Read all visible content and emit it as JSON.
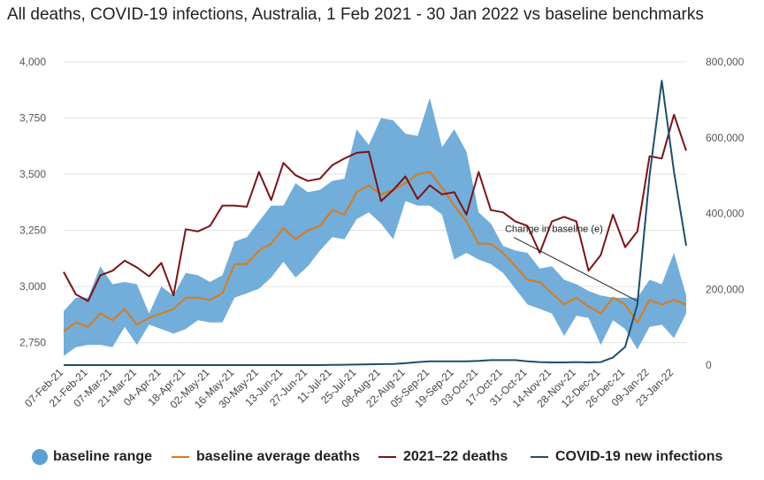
{
  "chart_data": {
    "type": "line",
    "title": "All deaths, COVID-19 infections, Australia, 1 Feb 2021 - 30 Jan 2022 vs baseline benchmarks",
    "xlabel": "",
    "ylabel_left": "",
    "ylabel_right": "",
    "ylim_left": [
      2650,
      4000
    ],
    "ylim_right": [
      0,
      800000
    ],
    "yticks_left": [
      2750,
      3000,
      3250,
      3500,
      3750,
      4000
    ],
    "yticks_left_labels": [
      "2,750",
      "3,000",
      "3,250",
      "3,500",
      "3,750",
      "4,000"
    ],
    "yticks_right": [
      0,
      200000,
      400000,
      600000,
      800000
    ],
    "yticks_right_labels": [
      "0",
      "200,000",
      "400,000",
      "600,000",
      "800,000"
    ],
    "grid": true,
    "legend_position": "bottom",
    "x": [
      "07-Feb-21",
      "14-Feb-21",
      "21-Feb-21",
      "28-Feb-21",
      "07-Mar-21",
      "14-Mar-21",
      "21-Mar-21",
      "28-Mar-21",
      "04-Apr-21",
      "11-Apr-21",
      "18-Apr-21",
      "25-Apr-21",
      "02-May-21",
      "09-May-21",
      "16-May-21",
      "23-May-21",
      "30-May-21",
      "06-Jun-21",
      "13-Jun-21",
      "20-Jun-21",
      "27-Jun-21",
      "04-Jul-21",
      "11-Jul-21",
      "18-Jul-21",
      "25-Jul-21",
      "01-Aug-21",
      "08-Aug-21",
      "15-Aug-21",
      "22-Aug-21",
      "29-Aug-21",
      "05-Sep-21",
      "12-Sep-21",
      "19-Sep-21",
      "26-Sep-21",
      "03-Oct-21",
      "10-Oct-21",
      "17-Oct-21",
      "24-Oct-21",
      "31-Oct-21",
      "07-Nov-21",
      "14-Nov-21",
      "21-Nov-21",
      "28-Nov-21",
      "05-Dec-21",
      "12-Dec-21",
      "19-Dec-21",
      "26-Dec-21",
      "02-Jan-22",
      "09-Jan-22",
      "16-Jan-22",
      "23-Jan-22",
      "30-Jan-22"
    ],
    "x_tick_labels": [
      "07-Feb-21",
      "21-Feb-21",
      "07-Mar-21",
      "21-Mar-21",
      "04-Apr-21",
      "18-Apr-21",
      "02-May-21",
      "16-May-21",
      "30-May-21",
      "13-Jun-21",
      "27-Jun-21",
      "11-Jul-21",
      "25-Jul-21",
      "08-Aug-21",
      "22-Aug-21",
      "05-Sep-21",
      "19-Sep-21",
      "03-Oct-21",
      "17-Oct-21",
      "31-Oct-21",
      "14-Nov-21",
      "28-Nov-21",
      "12-Dec-21",
      "26-Dec-21",
      "09-Jan-22",
      "23-Jan-22"
    ],
    "series": [
      {
        "name": "baseline range",
        "kind": "range",
        "axis": "left",
        "color": "#5b9fd4",
        "upper": [
          2890,
          2950,
          2950,
          3090,
          3010,
          3020,
          3010,
          2880,
          3000,
          2960,
          3060,
          3050,
          3020,
          3050,
          3200,
          3220,
          3290,
          3360,
          3360,
          3460,
          3420,
          3430,
          3470,
          3480,
          3700,
          3630,
          3750,
          3740,
          3680,
          3670,
          3840,
          3620,
          3700,
          3600,
          3330,
          3280,
          3180,
          3160,
          3150,
          3080,
          3090,
          3030,
          3010,
          2980,
          2960,
          2950,
          2950,
          2950,
          3030,
          3010,
          3150,
          2960
        ],
        "lower": [
          2690,
          2730,
          2740,
          2740,
          2730,
          2820,
          2740,
          2830,
          2810,
          2790,
          2810,
          2850,
          2840,
          2840,
          2950,
          2970,
          2990,
          3040,
          3110,
          3040,
          3090,
          3160,
          3220,
          3210,
          3300,
          3330,
          3280,
          3210,
          3380,
          3360,
          3360,
          3320,
          3120,
          3150,
          3120,
          3100,
          3060,
          2990,
          2920,
          2900,
          2880,
          2780,
          2870,
          2860,
          2740,
          2850,
          2810,
          2720,
          2820,
          2830,
          2770,
          2880
        ]
      },
      {
        "name": "baseline average deaths",
        "kind": "line",
        "axis": "left",
        "color": "#d97b1a",
        "values": [
          2800,
          2840,
          2820,
          2880,
          2850,
          2900,
          2830,
          2860,
          2880,
          2900,
          2950,
          2950,
          2940,
          2970,
          3100,
          3100,
          3160,
          3190,
          3260,
          3210,
          3250,
          3270,
          3340,
          3320,
          3420,
          3450,
          3410,
          3430,
          3460,
          3500,
          3510,
          3440,
          3360,
          3290,
          3190,
          3190,
          3150,
          3090,
          3030,
          3020,
          2970,
          2920,
          2950,
          2910,
          2880,
          2950,
          2920,
          2840,
          2940,
          2920,
          2940,
          2920
        ]
      },
      {
        "name": "2021–22 deaths",
        "kind": "line",
        "axis": "left",
        "color": "#7a1416",
        "values": [
          3065,
          2965,
          2935,
          3050,
          3070,
          3115,
          3085,
          3045,
          3105,
          2960,
          3255,
          3245,
          3270,
          3360,
          3360,
          3355,
          3510,
          3385,
          3550,
          3495,
          3470,
          3480,
          3540,
          3570,
          3595,
          3600,
          3380,
          3430,
          3490,
          3390,
          3450,
          3410,
          3420,
          3320,
          3510,
          3340,
          3330,
          3290,
          3270,
          3150,
          3290,
          3310,
          3290,
          3070,
          3140,
          3320,
          3175,
          3245,
          3580,
          3570,
          3765,
          3605
        ]
      },
      {
        "name": "COVID-19 new infections",
        "kind": "line",
        "axis": "right",
        "color": "#1f4e6b",
        "values": [
          0,
          0,
          0,
          0,
          0,
          0,
          0,
          0,
          0,
          0,
          0,
          0,
          0,
          0,
          0,
          0,
          0,
          0,
          0,
          0,
          0,
          0,
          500,
          1000,
          1500,
          2000,
          2500,
          3000,
          5000,
          8000,
          10000,
          10000,
          10000,
          10000,
          11000,
          13000,
          13000,
          13000,
          10000,
          8000,
          7000,
          7000,
          8000,
          7000,
          8000,
          20000,
          48000,
          160000,
          500000,
          750000,
          510000,
          315000
        ]
      }
    ],
    "annotations": [
      {
        "text": "Change in baseline (e)",
        "x": "05-Sep-21",
        "y": 3250,
        "arrow_to_x": "02-Jan-22",
        "arrow_to_y": 2935
      }
    ]
  },
  "legend": {
    "items": [
      {
        "label": "baseline range",
        "color": "#5b9fd4"
      },
      {
        "label": "baseline average deaths",
        "color": "#d97b1a"
      },
      {
        "label": "2021–22 deaths",
        "color": "#7a1416"
      },
      {
        "label": "COVID-19 new infections",
        "color": "#1f4e6b"
      }
    ]
  }
}
